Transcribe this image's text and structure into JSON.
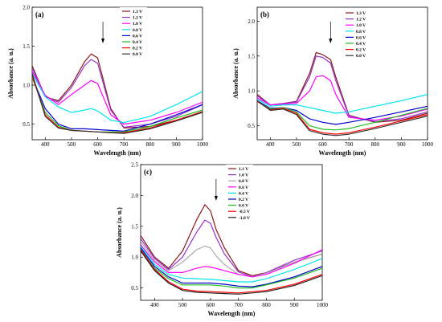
{
  "chart_data": [
    {
      "type": "line",
      "panel_label": "(a)",
      "xlabel": "Wavelength (nm)",
      "ylabel": "Absorbance (a. u.)",
      "xlim": [
        350,
        1000
      ],
      "ylim": [
        0.3,
        2.0
      ],
      "xticks": [
        400,
        500,
        600,
        700,
        800,
        900,
        1000
      ],
      "yticks": [
        0.5,
        1.0,
        1.5,
        2.0
      ],
      "arrow_at": 620,
      "legend_position": "top-right",
      "series": [
        {
          "name": "1.3 V",
          "color": "#8b1a1a",
          "x": [
            350,
            400,
            450,
            500,
            550,
            575,
            600,
            650,
            700,
            800,
            900,
            1000
          ],
          "y": [
            1.25,
            0.85,
            0.8,
            1.0,
            1.3,
            1.4,
            1.35,
            0.7,
            0.45,
            0.47,
            0.55,
            0.66
          ]
        },
        {
          "name": "1.2 V",
          "color": "#9932cc",
          "x": [
            350,
            400,
            450,
            500,
            550,
            575,
            600,
            650,
            700,
            800,
            900,
            1000
          ],
          "y": [
            1.22,
            0.86,
            0.78,
            0.97,
            1.25,
            1.33,
            1.28,
            0.68,
            0.46,
            0.5,
            0.6,
            0.75
          ]
        },
        {
          "name": "1.0 V",
          "color": "#ff00ff",
          "x": [
            350,
            400,
            450,
            500,
            550,
            575,
            600,
            650,
            700,
            800,
            900,
            1000
          ],
          "y": [
            1.18,
            0.87,
            0.75,
            0.88,
            1.0,
            1.06,
            1.02,
            0.62,
            0.5,
            0.55,
            0.65,
            0.78
          ]
        },
        {
          "name": "0.8 V",
          "color": "#00e5ee",
          "x": [
            350,
            400,
            450,
            500,
            550,
            575,
            600,
            650,
            700,
            800,
            900,
            1000
          ],
          "y": [
            1.15,
            0.85,
            0.72,
            0.65,
            0.68,
            0.7,
            0.67,
            0.55,
            0.52,
            0.6,
            0.75,
            0.92
          ]
        },
        {
          "name": "0.6 V",
          "color": "#0000cd",
          "x": [
            350,
            400,
            450,
            500,
            550,
            600,
            650,
            700,
            800,
            900,
            1000
          ],
          "y": [
            1.1,
            0.7,
            0.5,
            0.44,
            0.44,
            0.43,
            0.42,
            0.41,
            0.5,
            0.62,
            0.75
          ]
        },
        {
          "name": "0.4 V",
          "color": "#22bb22",
          "x": [
            350,
            400,
            450,
            500,
            550,
            600,
            650,
            700,
            800,
            900,
            1000
          ],
          "y": [
            1.1,
            0.65,
            0.48,
            0.42,
            0.41,
            0.4,
            0.4,
            0.4,
            0.47,
            0.58,
            0.68
          ]
        },
        {
          "name": "0.2 V",
          "color": "#ff0000",
          "x": [
            350,
            400,
            450,
            500,
            550,
            600,
            650,
            700,
            800,
            900,
            1000
          ],
          "y": [
            1.12,
            0.62,
            0.46,
            0.42,
            0.41,
            0.4,
            0.39,
            0.39,
            0.45,
            0.55,
            0.66
          ]
        },
        {
          "name": "0.0 V",
          "color": "#333333",
          "x": [
            350,
            400,
            450,
            500,
            550,
            600,
            650,
            700,
            800,
            900,
            1000
          ],
          "y": [
            1.15,
            0.6,
            0.45,
            0.42,
            0.41,
            0.4,
            0.39,
            0.38,
            0.44,
            0.54,
            0.65
          ]
        }
      ]
    },
    {
      "type": "line",
      "panel_label": "(b)",
      "xlabel": "Wavelength (nm)",
      "ylabel": "Absorbance (a. u.)",
      "xlim": [
        350,
        1000
      ],
      "ylim": [
        0.3,
        2.2
      ],
      "xticks": [
        400,
        500,
        600,
        700,
        800,
        900,
        1000
      ],
      "yticks": [
        0.5,
        1.0,
        1.5,
        2.0
      ],
      "arrow_at": 630,
      "legend_position": "top-right",
      "series": [
        {
          "name": "1.3 V",
          "color": "#8b1a1a",
          "x": [
            350,
            400,
            450,
            500,
            550,
            575,
            600,
            630,
            650,
            700,
            800,
            900,
            1000
          ],
          "y": [
            0.95,
            0.8,
            0.82,
            0.85,
            1.25,
            1.55,
            1.52,
            1.45,
            1.2,
            0.65,
            0.55,
            0.58,
            0.68
          ]
        },
        {
          "name": "1.2 V",
          "color": "#9932cc",
          "x": [
            350,
            400,
            450,
            500,
            550,
            575,
            600,
            630,
            650,
            700,
            800,
            900,
            1000
          ],
          "y": [
            0.93,
            0.8,
            0.82,
            0.84,
            1.2,
            1.5,
            1.48,
            1.4,
            1.15,
            0.64,
            0.56,
            0.6,
            0.7
          ]
        },
        {
          "name": "1.0 V",
          "color": "#ff00ff",
          "x": [
            350,
            400,
            450,
            500,
            550,
            575,
            600,
            630,
            650,
            700,
            800,
            900,
            1000
          ],
          "y": [
            0.9,
            0.8,
            0.81,
            0.82,
            1.0,
            1.2,
            1.22,
            1.15,
            0.95,
            0.62,
            0.58,
            0.64,
            0.74
          ]
        },
        {
          "name": "0.8 V",
          "color": "#00e5ee",
          "x": [
            350,
            400,
            450,
            500,
            550,
            600,
            650,
            700,
            800,
            900,
            1000
          ],
          "y": [
            0.88,
            0.78,
            0.8,
            0.8,
            0.76,
            0.72,
            0.68,
            0.7,
            0.78,
            0.86,
            0.95
          ]
        },
        {
          "name": "0.6 V",
          "color": "#0000cd",
          "x": [
            350,
            400,
            450,
            500,
            550,
            600,
            650,
            700,
            800,
            900,
            1000
          ],
          "y": [
            0.86,
            0.75,
            0.76,
            0.72,
            0.6,
            0.55,
            0.52,
            0.55,
            0.62,
            0.7,
            0.78
          ]
        },
        {
          "name": "0.4 V",
          "color": "#22bb22",
          "x": [
            350,
            400,
            450,
            500,
            550,
            600,
            650,
            700,
            800,
            900,
            1000
          ],
          "y": [
            0.85,
            0.74,
            0.76,
            0.7,
            0.5,
            0.45,
            0.44,
            0.46,
            0.55,
            0.65,
            0.75
          ]
        },
        {
          "name": "0.2 V",
          "color": "#ff0000",
          "x": [
            350,
            400,
            450,
            500,
            550,
            600,
            650,
            700,
            800,
            900,
            1000
          ],
          "y": [
            0.85,
            0.73,
            0.75,
            0.68,
            0.45,
            0.4,
            0.38,
            0.4,
            0.48,
            0.57,
            0.66
          ]
        },
        {
          "name": "0.0 V",
          "color": "#333333",
          "x": [
            350,
            400,
            450,
            500,
            550,
            600,
            650,
            700,
            800,
            900,
            1000
          ],
          "y": [
            0.86,
            0.72,
            0.74,
            0.66,
            0.43,
            0.38,
            0.36,
            0.38,
            0.46,
            0.55,
            0.64
          ]
        }
      ]
    },
    {
      "type": "line",
      "panel_label": "(c)",
      "xlabel": "Wavelength (nm)",
      "ylabel": "Absorbance (a. u.)",
      "xlim": [
        350,
        1000
      ],
      "ylim": [
        0.3,
        2.5
      ],
      "xticks": [
        400,
        500,
        600,
        700,
        800,
        900,
        1000
      ],
      "yticks": [
        0.5,
        1.0,
        1.5,
        2.0,
        2.5
      ],
      "arrow_at": 620,
      "legend_position": "top-right",
      "series": [
        {
          "name": "1.1 V",
          "color": "#8b1a1a",
          "x": [
            350,
            400,
            450,
            500,
            550,
            580,
            600,
            620,
            650,
            700,
            750,
            800,
            900,
            1000
          ],
          "y": [
            1.35,
            1.0,
            0.82,
            1.1,
            1.6,
            1.85,
            1.75,
            1.45,
            1.15,
            0.78,
            0.7,
            0.75,
            0.92,
            1.05
          ]
        },
        {
          "name": "1.0 V",
          "color": "#9932cc",
          "x": [
            350,
            400,
            450,
            500,
            550,
            580,
            600,
            620,
            650,
            700,
            750,
            800,
            900,
            1000
          ],
          "y": [
            1.3,
            0.98,
            0.8,
            1.0,
            1.4,
            1.6,
            1.55,
            1.32,
            1.05,
            0.76,
            0.68,
            0.75,
            0.95,
            1.1
          ]
        },
        {
          "name": "0.8 V",
          "color": "#aaaaaa",
          "x": [
            350,
            400,
            450,
            500,
            550,
            580,
            600,
            620,
            650,
            700,
            750,
            800,
            900,
            1000
          ],
          "y": [
            1.25,
            0.95,
            0.78,
            0.92,
            1.12,
            1.18,
            1.15,
            1.02,
            0.88,
            0.72,
            0.68,
            0.74,
            0.92,
            1.05
          ]
        },
        {
          "name": "0.6 V",
          "color": "#ff00ff",
          "x": [
            350,
            400,
            450,
            500,
            550,
            580,
            600,
            650,
            700,
            750,
            800,
            900,
            1000
          ],
          "y": [
            1.2,
            0.92,
            0.75,
            0.75,
            0.82,
            0.85,
            0.84,
            0.78,
            0.72,
            0.68,
            0.72,
            0.9,
            1.12
          ]
        },
        {
          "name": "0.4 V",
          "color": "#00e5ee",
          "x": [
            350,
            400,
            450,
            500,
            550,
            600,
            650,
            700,
            750,
            800,
            900,
            1000
          ],
          "y": [
            1.18,
            0.88,
            0.72,
            0.66,
            0.65,
            0.64,
            0.62,
            0.6,
            0.6,
            0.65,
            0.8,
            0.98
          ]
        },
        {
          "name": "0.2 V",
          "color": "#0000cd",
          "x": [
            350,
            400,
            450,
            500,
            550,
            600,
            650,
            700,
            750,
            800,
            900,
            1000
          ],
          "y": [
            1.15,
            0.85,
            0.68,
            0.58,
            0.58,
            0.58,
            0.56,
            0.53,
            0.52,
            0.56,
            0.68,
            0.85
          ]
        },
        {
          "name": "0.0 V",
          "color": "#22bb22",
          "x": [
            350,
            400,
            450,
            500,
            550,
            600,
            650,
            700,
            750,
            800,
            900,
            1000
          ],
          "y": [
            1.12,
            0.82,
            0.65,
            0.55,
            0.55,
            0.55,
            0.53,
            0.5,
            0.5,
            0.55,
            0.66,
            0.82
          ]
        },
        {
          "name": "-0.5 V",
          "color": "#ff0000",
          "x": [
            350,
            400,
            450,
            500,
            550,
            600,
            650,
            700,
            800,
            900,
            1000
          ],
          "y": [
            1.12,
            0.8,
            0.6,
            0.48,
            0.45,
            0.44,
            0.43,
            0.42,
            0.46,
            0.56,
            0.72
          ]
        },
        {
          "name": "-1.0 V",
          "color": "#222222",
          "x": [
            350,
            400,
            450,
            500,
            550,
            600,
            650,
            700,
            800,
            900,
            1000
          ],
          "y": [
            1.1,
            0.78,
            0.58,
            0.46,
            0.43,
            0.42,
            0.41,
            0.4,
            0.44,
            0.54,
            0.7
          ]
        }
      ]
    }
  ]
}
